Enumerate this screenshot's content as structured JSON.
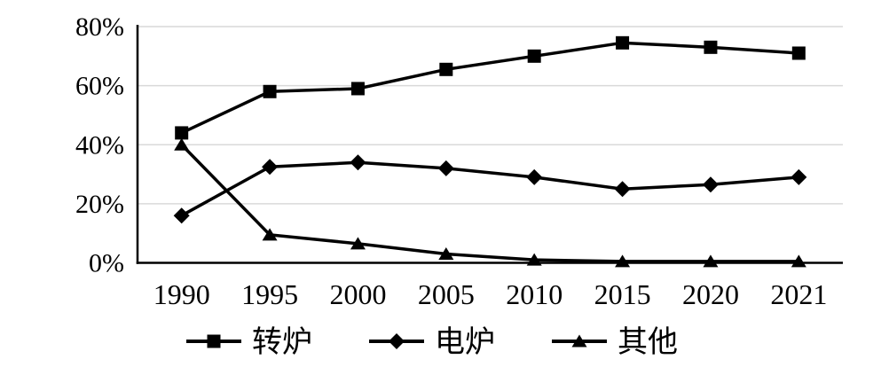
{
  "chart_data": {
    "type": "line",
    "title": "",
    "xlabel": "",
    "ylabel": "",
    "categories": [
      "1990",
      "1995",
      "2000",
      "2005",
      "2010",
      "2015",
      "2020",
      "2021"
    ],
    "series": [
      {
        "key": "converter",
        "name": "转炉",
        "marker": "square",
        "color": "#000000",
        "values": [
          44,
          58,
          59,
          65.5,
          70,
          74.5,
          73,
          71
        ]
      },
      {
        "key": "electric",
        "name": "电炉",
        "marker": "diamond",
        "color": "#000000",
        "values": [
          16,
          32.5,
          34,
          32,
          29,
          25,
          26.5,
          29
        ]
      },
      {
        "key": "other",
        "name": "其他",
        "marker": "triangle",
        "color": "#000000",
        "values": [
          40,
          9.5,
          6.5,
          3,
          1,
          0.5,
          0.5,
          0.5
        ]
      }
    ],
    "y_axis": {
      "unit": "%",
      "min": 0,
      "max": 80,
      "tick_values": [
        0,
        20,
        40,
        60,
        80
      ],
      "tick_labels": [
        "0%",
        "20%",
        "40%",
        "60%",
        "80%"
      ]
    },
    "legend": {
      "position": "bottom"
    },
    "grid": {
      "horizontal": true,
      "vertical": false
    },
    "colors": {
      "series_line": "#000000",
      "axis_line": "#000000",
      "gridline": "#d9d9d9",
      "background": "#ffffff",
      "text": "#000000"
    }
  }
}
